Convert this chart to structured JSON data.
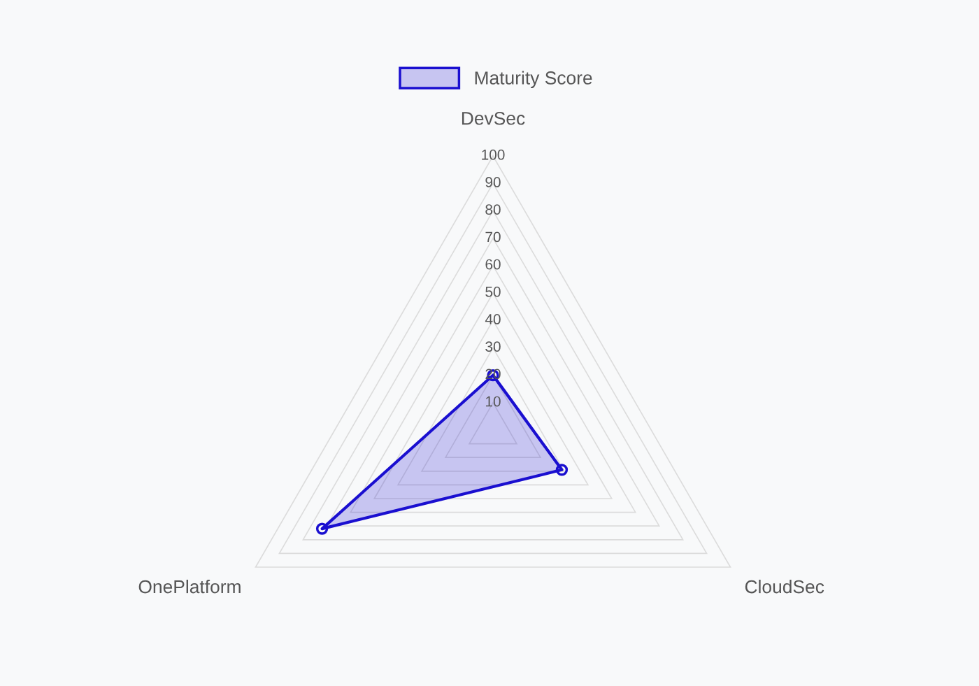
{
  "chart_data": {
    "type": "radar",
    "categories": [
      "DevSec",
      "CloudSec",
      "OnePlatform"
    ],
    "series": [
      {
        "name": "Maturity Score",
        "color": "#1a0fd0",
        "values": [
          20,
          29,
          72
        ]
      }
    ],
    "ylim": [
      0,
      100
    ],
    "yticks": [
      10,
      20,
      30,
      40,
      50,
      60,
      70,
      80,
      90,
      100
    ],
    "grid": true,
    "legend": "top",
    "marker": "circle"
  }
}
